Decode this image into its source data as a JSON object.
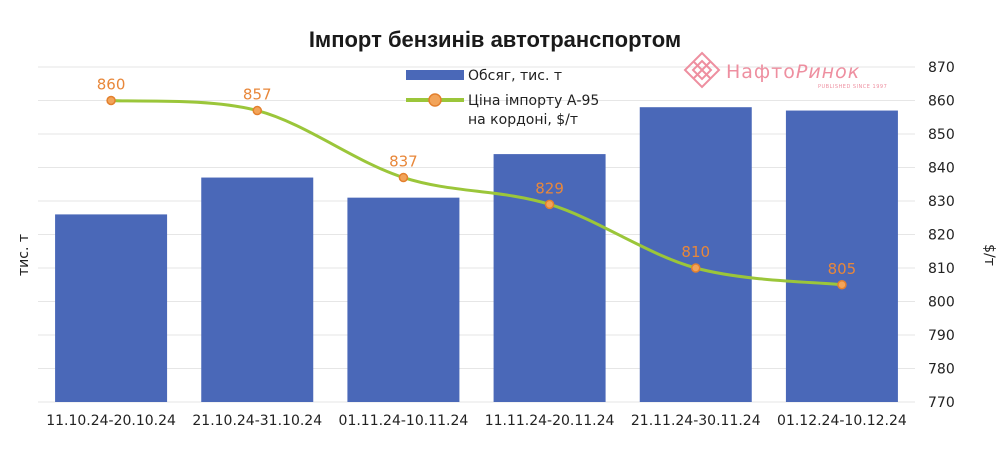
{
  "colors": {
    "bar": "#4a68b8",
    "line": "#9bc63a",
    "marker_fill": "#f2a45a",
    "marker_stroke": "#e3802e",
    "label": "#e8873a",
    "grid": "#e6e6e6",
    "logo": "#ee8fa0"
  },
  "logo": {
    "name_a": "Нафто",
    "name_b": "Ринок",
    "sub": "PUBLISHED SINCE 1997",
    "icon": "diamond-lattice-logo-icon"
  },
  "chart_data": {
    "type": "bar+line",
    "title": "Імпорт бензинів автотранспортом",
    "categories": [
      "11.10.24-20.10.24",
      "21.10.24-31.10.24",
      "01.11.24-10.11.24",
      "11.11.24-20.11.24",
      "21.11.24-30.11.24",
      "01.12.24-10.12.24"
    ],
    "series": [
      {
        "name": "Обсяг, тис. т",
        "type": "bar",
        "axis": "left",
        "values": [
          0.56,
          0.67,
          0.61,
          0.74,
          0.88,
          0.87
        ]
      },
      {
        "name": "Ціна імпорту А-95 на кордоні, $/т",
        "legend_lines": [
          "Ціна імпорту А-95",
          "на кордоні, $/т"
        ],
        "type": "line",
        "axis": "right",
        "values": [
          860,
          857,
          837,
          829,
          810,
          805
        ]
      }
    ],
    "left_axis": {
      "label": "тис. т",
      "ylim": [
        0,
        1
      ],
      "ticks_shown": false
    },
    "right_axis": {
      "label": "$/т",
      "ylim": [
        770,
        870
      ],
      "ticks": [
        "870",
        "860",
        "850",
        "840",
        "830",
        "820",
        "810",
        "800",
        "790",
        "780",
        "770"
      ]
    },
    "grid": true,
    "legend_position": "top-center"
  }
}
